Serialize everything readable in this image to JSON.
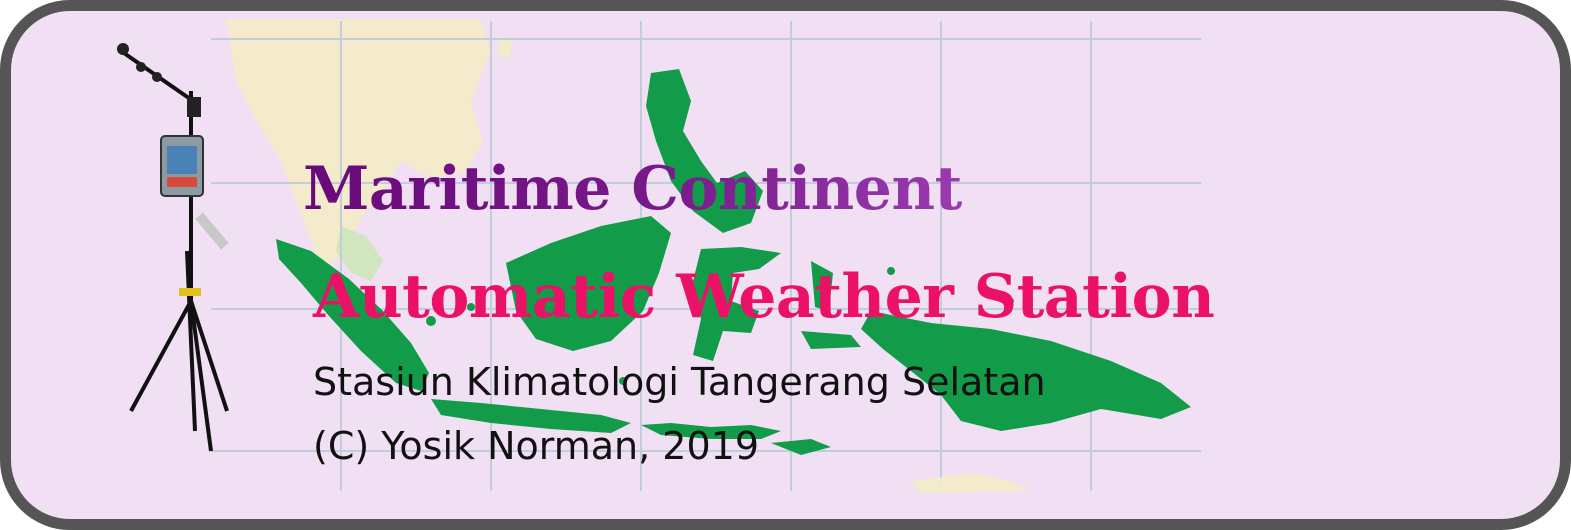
{
  "banner": {
    "title_line_1": "Maritime Continent",
    "title_line_2": "Automatic Weather Station",
    "subtitle": "Stasiun Klimatologi Tangerang Selatan",
    "copyright": "(C) Yosik Norman, 2019"
  },
  "colors": {
    "background": "#f1dff4",
    "border": "#555555",
    "title_line_1": "#6a0a7a",
    "title_line_2": "#ea1166",
    "land_indonesia": "#129c4a",
    "land_mainland": "#f3ecc8",
    "grid": "#c2cddc"
  },
  "icons": {
    "map": "maritime-continent-map",
    "station": "weather-station-tripod"
  }
}
